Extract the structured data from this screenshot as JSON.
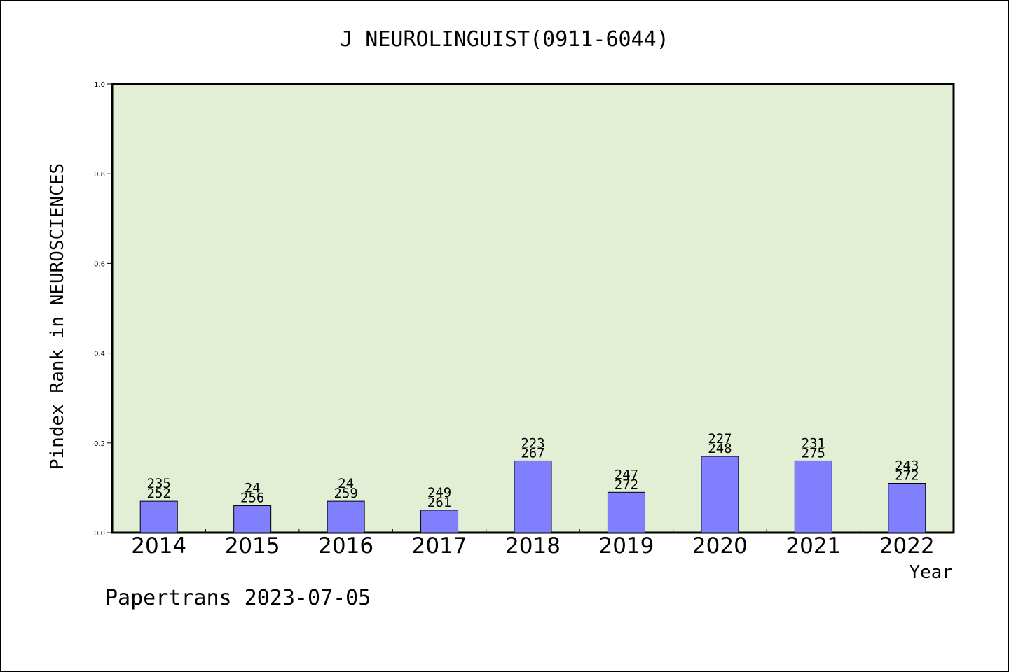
{
  "chart_data": {
    "type": "bar",
    "title": "J NEUROLINGUIST(0911-6044)",
    "xlabel": "Year",
    "ylabel": "Pindex Rank in NEUROSCIENCES",
    "categories": [
      "2014",
      "2015",
      "2016",
      "2017",
      "2018",
      "2019",
      "2020",
      "2021",
      "2022"
    ],
    "values": [
      0.07,
      0.06,
      0.07,
      0.05,
      0.16,
      0.09,
      0.17,
      0.16,
      0.11
    ],
    "label_top": [
      "235",
      "24",
      "24",
      "249",
      "223",
      "247",
      "227",
      "231",
      "243"
    ],
    "label_bottom": [
      "252",
      "256",
      "259",
      "261",
      "267",
      "272",
      "248",
      "275",
      "272"
    ],
    "ylim": [
      0,
      1.0
    ],
    "yticks": [
      "0.0",
      "0.2",
      "0.4",
      "0.6",
      "0.8",
      "1.0"
    ],
    "grid": false,
    "colors": {
      "bar": "#8080ff",
      "plot_background": "#e2efd5"
    }
  },
  "footer": {
    "text": "Papertrans 2023-07-05"
  }
}
